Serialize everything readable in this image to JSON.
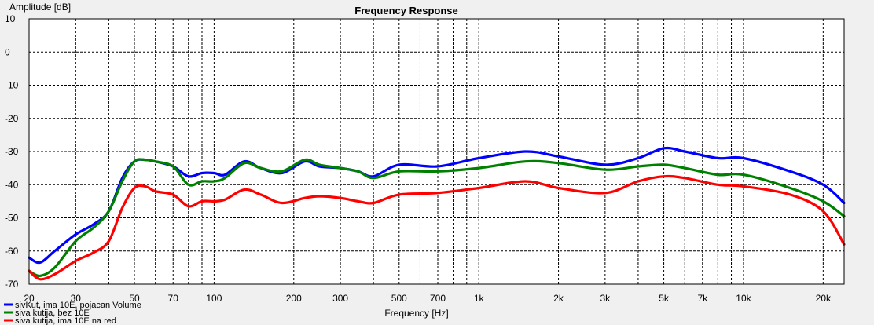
{
  "chart_data": {
    "type": "line",
    "title": "Frequency Response",
    "xlabel": "Frequency [Hz]",
    "ylabel": "Amplitude [dB]",
    "x_scale": "log",
    "xlim": [
      20,
      24000
    ],
    "ylim": [
      -70,
      10
    ],
    "grid": true,
    "legend_position": "bottom-left",
    "x_ticks": [
      {
        "value": 20,
        "label": "20"
      },
      {
        "value": 30,
        "label": "30"
      },
      {
        "value": 50,
        "label": "50"
      },
      {
        "value": 70,
        "label": "70"
      },
      {
        "value": 100,
        "label": "100"
      },
      {
        "value": 200,
        "label": "200"
      },
      {
        "value": 300,
        "label": "300"
      },
      {
        "value": 500,
        "label": "500"
      },
      {
        "value": 700,
        "label": "700"
      },
      {
        "value": 1000,
        "label": "1k"
      },
      {
        "value": 2000,
        "label": "2k"
      },
      {
        "value": 3000,
        "label": "3k"
      },
      {
        "value": 5000,
        "label": "5k"
      },
      {
        "value": 7000,
        "label": "7k"
      },
      {
        "value": 10000,
        "label": "10k"
      },
      {
        "value": 20000,
        "label": "20k"
      }
    ],
    "y_ticks": [
      10,
      0,
      -10,
      -20,
      -30,
      -40,
      -50,
      -60,
      -70
    ],
    "series": [
      {
        "name": "sivKut, ima 10E, pojacan Volume",
        "color": "#0000ff",
        "points": [
          [
            20,
            -62
          ],
          [
            22,
            -63.5
          ],
          [
            25,
            -60
          ],
          [
            30,
            -55
          ],
          [
            35,
            -52
          ],
          [
            40,
            -48
          ],
          [
            45,
            -38
          ],
          [
            50,
            -33
          ],
          [
            55,
            -32.5
          ],
          [
            60,
            -33
          ],
          [
            70,
            -34.5
          ],
          [
            80,
            -37.5
          ],
          [
            90,
            -36.5
          ],
          [
            100,
            -36.5
          ],
          [
            110,
            -37
          ],
          [
            130,
            -33
          ],
          [
            150,
            -35
          ],
          [
            180,
            -36.5
          ],
          [
            220,
            -33
          ],
          [
            250,
            -34.5
          ],
          [
            300,
            -35
          ],
          [
            350,
            -36
          ],
          [
            400,
            -37.5
          ],
          [
            500,
            -34
          ],
          [
            700,
            -34.5
          ],
          [
            1000,
            -32
          ],
          [
            1500,
            -30
          ],
          [
            2000,
            -31.5
          ],
          [
            3000,
            -34
          ],
          [
            4000,
            -32
          ],
          [
            5000,
            -29
          ],
          [
            6000,
            -30
          ],
          [
            8000,
            -32
          ],
          [
            10000,
            -32
          ],
          [
            15000,
            -36
          ],
          [
            20000,
            -40
          ],
          [
            24000,
            -45.5
          ]
        ]
      },
      {
        "name": "siva kutija, bez 10E",
        "color": "#008000",
        "points": [
          [
            20,
            -66
          ],
          [
            22,
            -67.5
          ],
          [
            25,
            -65
          ],
          [
            30,
            -57
          ],
          [
            35,
            -53
          ],
          [
            40,
            -48
          ],
          [
            45,
            -39
          ],
          [
            50,
            -33
          ],
          [
            55,
            -32.5
          ],
          [
            60,
            -33
          ],
          [
            70,
            -34.5
          ],
          [
            80,
            -40
          ],
          [
            90,
            -39
          ],
          [
            100,
            -39
          ],
          [
            110,
            -38
          ],
          [
            130,
            -33.5
          ],
          [
            150,
            -35
          ],
          [
            180,
            -36
          ],
          [
            220,
            -32.5
          ],
          [
            250,
            -34
          ],
          [
            300,
            -35
          ],
          [
            350,
            -36
          ],
          [
            400,
            -38
          ],
          [
            500,
            -36
          ],
          [
            700,
            -36
          ],
          [
            1000,
            -35
          ],
          [
            1500,
            -33
          ],
          [
            2000,
            -33.5
          ],
          [
            3000,
            -35.5
          ],
          [
            4000,
            -34.5
          ],
          [
            5000,
            -34
          ],
          [
            6000,
            -35
          ],
          [
            8000,
            -37
          ],
          [
            10000,
            -37
          ],
          [
            15000,
            -41
          ],
          [
            20000,
            -45
          ],
          [
            24000,
            -49.5
          ]
        ]
      },
      {
        "name": "siva kutija, ima 10E na red",
        "color": "#ff0000",
        "points": [
          [
            20,
            -66
          ],
          [
            22,
            -68.5
          ],
          [
            25,
            -67
          ],
          [
            30,
            -63
          ],
          [
            35,
            -60.5
          ],
          [
            40,
            -57
          ],
          [
            45,
            -47
          ],
          [
            50,
            -41
          ],
          [
            55,
            -40.5
          ],
          [
            60,
            -42
          ],
          [
            70,
            -43
          ],
          [
            80,
            -46.5
          ],
          [
            90,
            -45
          ],
          [
            100,
            -45
          ],
          [
            110,
            -44.5
          ],
          [
            130,
            -41.5
          ],
          [
            150,
            -43
          ],
          [
            180,
            -45.5
          ],
          [
            220,
            -44
          ],
          [
            250,
            -43.5
          ],
          [
            300,
            -44
          ],
          [
            350,
            -45
          ],
          [
            400,
            -45.5
          ],
          [
            500,
            -43
          ],
          [
            700,
            -42.5
          ],
          [
            1000,
            -41
          ],
          [
            1500,
            -39
          ],
          [
            2000,
            -41
          ],
          [
            3000,
            -42.5
          ],
          [
            4000,
            -39
          ],
          [
            5000,
            -37.5
          ],
          [
            6000,
            -38
          ],
          [
            8000,
            -40
          ],
          [
            10000,
            -40.5
          ],
          [
            15000,
            -43
          ],
          [
            20000,
            -48
          ],
          [
            24000,
            -58
          ]
        ]
      }
    ]
  }
}
